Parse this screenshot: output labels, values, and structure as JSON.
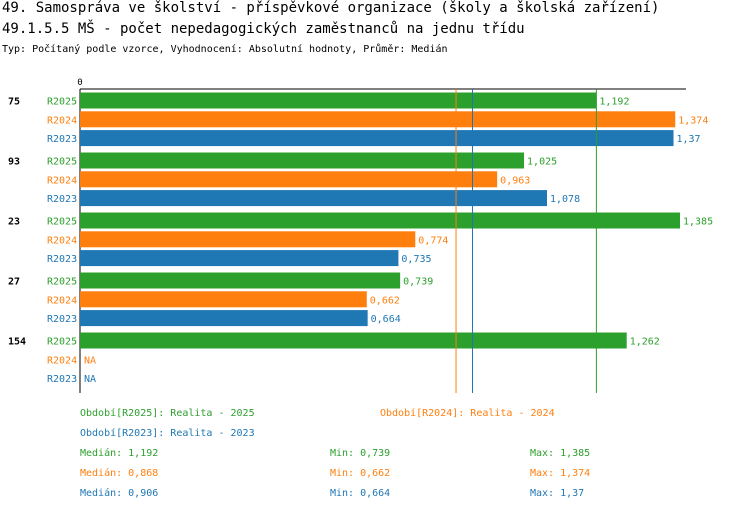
{
  "header": {
    "title": "49. Samospráva ve školství - příspěvkové organizace (školy a školská zařízení)",
    "subtitle": "49.1.5.5 MŠ - počet nepedagogických zaměstnanců na jednu třídu",
    "meta": "Typ: Počítaný podle vzorce, Vyhodnocení: Absolutní hodnoty, Průměr: Medián"
  },
  "colors": {
    "R2025": "#2ca02c",
    "R2024": "#ff7f0e",
    "R2023": "#1f77b4"
  },
  "chart_data": {
    "type": "bar",
    "orientation": "horizontal",
    "zero_label": "0",
    "categories": [
      "75",
      "93",
      "23",
      "27",
      "154"
    ],
    "series": [
      {
        "name": "R2025",
        "values": [
          1.192,
          1.025,
          1.385,
          0.739,
          1.262
        ],
        "labels": [
          "1,192",
          "1,025",
          "1,385",
          "0,739",
          "1,262"
        ]
      },
      {
        "name": "R2024",
        "values": [
          1.374,
          0.963,
          0.774,
          0.662,
          null
        ],
        "labels": [
          "1,374",
          "0,963",
          "0,774",
          "0,662",
          "NA"
        ]
      },
      {
        "name": "R2023",
        "values": [
          1.37,
          1.078,
          0.735,
          0.664,
          null
        ],
        "labels": [
          "1,37",
          "1,078",
          "0,735",
          "0,664",
          "NA"
        ]
      }
    ],
    "median_lines": [
      {
        "series": "R2025",
        "value": 1.192
      },
      {
        "series": "R2024",
        "value": 0.868
      },
      {
        "series": "R2023",
        "value": 0.906
      }
    ],
    "xlim": [
      0,
      1.385
    ]
  },
  "legend": {
    "periods": [
      {
        "key": "R2025",
        "text": "Období[R2025]: Realita - 2025"
      },
      {
        "key": "R2024",
        "text": "Období[R2024]: Realita - 2024"
      },
      {
        "key": "R2023",
        "text": "Období[R2023]: Realita - 2023"
      }
    ],
    "stats": [
      {
        "key": "R2025",
        "median": "Medián: 1,192",
        "min": "Min: 0,739",
        "max": "Max: 1,385"
      },
      {
        "key": "R2024",
        "median": "Medián: 0,868",
        "min": "Min: 0,662",
        "max": "Max: 1,374"
      },
      {
        "key": "R2023",
        "median": "Medián: 0,906",
        "min": "Min: 0,664",
        "max": "Max: 1,37"
      }
    ]
  }
}
